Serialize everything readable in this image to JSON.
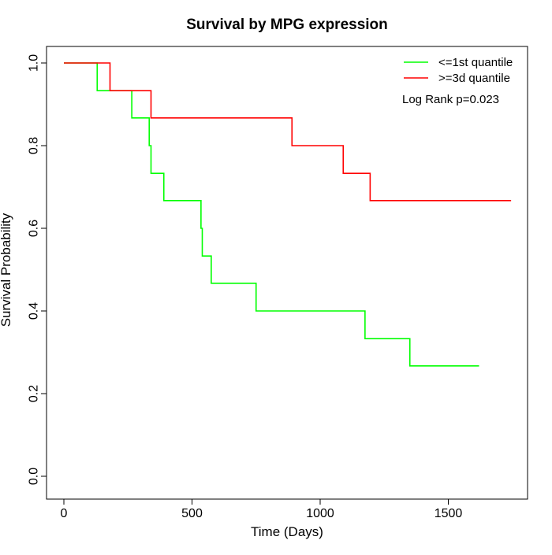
{
  "chart_data": {
    "type": "line",
    "step": true,
    "title": "Survival by MPG expression",
    "xlabel": "Time (Days)",
    "ylabel": "Survival Probability",
    "xlim": [
      0,
      1750
    ],
    "ylim": [
      0,
      1
    ],
    "x_ticks": [
      0,
      500,
      1000,
      1500
    ],
    "x_tick_labels": [
      "0",
      "500",
      "1000",
      "1500"
    ],
    "y_ticks": [
      0,
      0.2,
      0.4,
      0.6,
      0.8,
      1
    ],
    "y_tick_labels": [
      "0.0",
      "0.2",
      "0.4",
      "0.6",
      "0.8",
      "1.0"
    ],
    "grid": false,
    "legend_position": "top-right",
    "annotation": "Log Rank p=0.023",
    "series": [
      {
        "name": "<=1st quantile",
        "color": "#00ff00",
        "x": [
          0,
          130,
          265,
          333,
          340,
          390,
          535,
          540,
          575,
          750,
          1175,
          1350,
          1620
        ],
        "y": [
          1.0,
          0.933,
          0.867,
          0.8,
          0.733,
          0.667,
          0.6,
          0.533,
          0.467,
          0.4,
          0.333,
          0.267,
          0.267
        ]
      },
      {
        "name": ">=3d quantile",
        "color": "#ff0000",
        "x": [
          0,
          180,
          340,
          890,
          1090,
          1195,
          1745
        ],
        "y": [
          1.0,
          0.933,
          0.867,
          0.8,
          0.733,
          0.667,
          0.667
        ]
      }
    ]
  }
}
